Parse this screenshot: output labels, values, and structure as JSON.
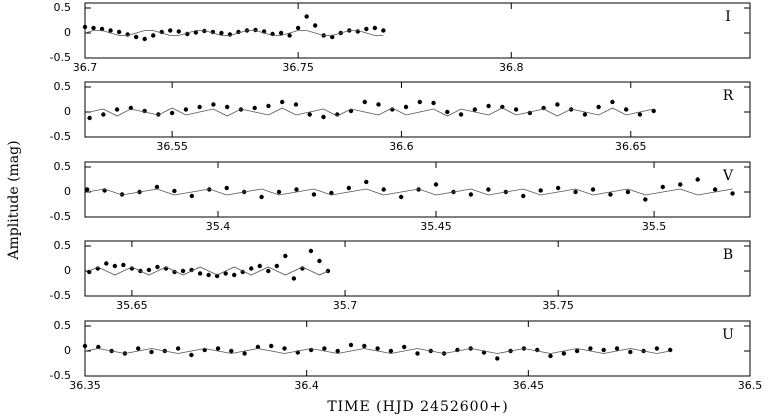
{
  "ylabel": "Amplitude (mag)",
  "xlabel": "TIME (HJD 2452600+)",
  "chart_data": [
    {
      "type": "scatter",
      "label": "I",
      "xlim": [
        36.7,
        36.856
      ],
      "xticks": [
        36.7,
        36.75,
        36.8
      ],
      "ylim": [
        -0.5,
        0.6
      ],
      "yticks": [
        0.5,
        0,
        -0.5
      ],
      "x": [
        36.7,
        36.702,
        36.704,
        36.706,
        36.708,
        36.71,
        36.712,
        36.714,
        36.716,
        36.718,
        36.72,
        36.722,
        36.724,
        36.726,
        36.728,
        36.73,
        36.732,
        36.734,
        36.736,
        36.738,
        36.74,
        36.742,
        36.744,
        36.746,
        36.748,
        36.75,
        36.752,
        36.754,
        36.756,
        36.758,
        36.76,
        36.762,
        36.764,
        36.766,
        36.768,
        36.77
      ],
      "series": [
        {
          "style": "points",
          "color": "#000000",
          "values": [
            0.12,
            0.1,
            0.08,
            0.05,
            0.02,
            -0.03,
            -0.08,
            -0.12,
            -0.05,
            0.02,
            0.05,
            0.03,
            -0.02,
            0.01,
            0.04,
            0.02,
            0,
            -0.03,
            0.02,
            0.05,
            0.06,
            0.03,
            -0.02,
            0,
            -0.05,
            0.1,
            0.33,
            0.15,
            -0.05,
            -0.08,
            0,
            0.05,
            0.03,
            0.08,
            0.1,
            0.05
          ]
        },
        {
          "style": "line",
          "color": "#555555",
          "values": [
            0,
            0.05,
            0.05,
            0,
            -0.05,
            -0.05,
            0,
            0.05,
            0.05,
            0,
            -0.05,
            -0.05,
            0,
            0.05,
            0.05,
            0,
            -0.05,
            -0.05,
            0,
            0.05,
            0.05,
            0,
            -0.05,
            -0.05,
            0,
            0.05,
            0.05,
            0,
            -0.05,
            -0.05,
            0,
            0.05,
            0.05,
            0,
            -0.05,
            -0.05
          ]
        }
      ]
    },
    {
      "type": "scatter",
      "label": "R",
      "xlim": [
        36.531,
        36.676
      ],
      "xticks": [
        36.55,
        36.6,
        36.65
      ],
      "ylim": [
        -0.5,
        0.6
      ],
      "yticks": [
        0.5,
        0,
        -0.5
      ],
      "x": [
        36.532,
        36.535,
        36.538,
        36.541,
        36.544,
        36.547,
        36.55,
        36.553,
        36.556,
        36.559,
        36.562,
        36.565,
        36.568,
        36.571,
        36.574,
        36.577,
        36.58,
        36.583,
        36.586,
        36.589,
        36.592,
        36.595,
        36.598,
        36.601,
        36.604,
        36.607,
        36.61,
        36.613,
        36.616,
        36.619,
        36.622,
        36.625,
        36.628,
        36.631,
        36.634,
        36.637,
        36.64,
        36.643,
        36.646,
        36.649,
        36.652,
        36.655
      ],
      "series": [
        {
          "style": "points",
          "color": "#000000",
          "values": [
            -0.12,
            -0.05,
            0.05,
            0.08,
            0.02,
            -0.05,
            -0.02,
            0.05,
            0.1,
            0.15,
            0.1,
            0.05,
            0.08,
            0.12,
            0.2,
            0.15,
            -0.05,
            -0.1,
            -0.05,
            0.02,
            0.2,
            0.15,
            0.05,
            0.1,
            0.2,
            0.18,
            0,
            -0.05,
            0.05,
            0.12,
            0.1,
            0.05,
            -0.02,
            0.08,
            0.15,
            0.05,
            -0.05,
            0.1,
            0.2,
            0.05,
            -0.05,
            0.02
          ]
        },
        {
          "style": "line",
          "color": "#555555",
          "values": [
            0,
            0.06,
            -0.08,
            0.06,
            0,
            -0.06,
            0.08,
            -0.06,
            0,
            0.06,
            -0.08,
            0.06,
            0,
            -0.06,
            0.08,
            -0.06,
            0,
            0.06,
            -0.08,
            0.06,
            0,
            -0.06,
            0.08,
            -0.06,
            0,
            0.06,
            -0.08,
            0.06,
            0,
            -0.06,
            0.08,
            -0.06,
            0,
            0.06,
            -0.08,
            0.06,
            0,
            -0.06,
            0.08,
            -0.06,
            0,
            0.06
          ]
        }
      ]
    },
    {
      "type": "scatter",
      "label": "V",
      "xlim": [
        35.3695,
        35.522
      ],
      "xticks": [
        35.4,
        35.45,
        35.5
      ],
      "ylim": [
        -0.5,
        0.6
      ],
      "yticks": [
        0.5,
        0,
        -0.5
      ],
      "x": [
        35.37,
        35.374,
        35.378,
        35.382,
        35.386,
        35.39,
        35.394,
        35.398,
        35.402,
        35.406,
        35.41,
        35.414,
        35.418,
        35.422,
        35.426,
        35.43,
        35.434,
        35.438,
        35.442,
        35.446,
        35.45,
        35.454,
        35.458,
        35.462,
        35.466,
        35.47,
        35.474,
        35.478,
        35.482,
        35.486,
        35.49,
        35.494,
        35.498,
        35.502,
        35.506,
        35.51,
        35.514,
        35.518
      ],
      "series": [
        {
          "style": "points",
          "color": "#000000",
          "values": [
            0.05,
            0.03,
            -0.05,
            0,
            0.1,
            0.02,
            -0.08,
            0.05,
            0.08,
            0,
            -0.1,
            0,
            0.05,
            -0.05,
            -0.02,
            0.08,
            0.2,
            0.05,
            -0.1,
            0.05,
            0.15,
            0,
            -0.05,
            0.05,
            0,
            -0.08,
            0.03,
            0.08,
            0,
            0.05,
            -0.05,
            0,
            -0.15,
            0.1,
            0.15,
            0.25,
            0.05,
            -0.03
          ]
        },
        {
          "style": "line",
          "color": "#555555",
          "values": [
            0,
            0.06,
            -0.06,
            0,
            0.06,
            -0.06,
            0,
            0.06,
            -0.06,
            0,
            0.06,
            -0.06,
            0,
            0.06,
            -0.06,
            0,
            0.06,
            -0.06,
            0,
            0.06,
            -0.06,
            0,
            0.06,
            -0.06,
            0,
            0.06,
            -0.06,
            0,
            0.06,
            -0.06,
            0,
            0.06,
            -0.06,
            0,
            0.06,
            -0.06,
            0,
            0.06
          ]
        }
      ]
    },
    {
      "type": "scatter",
      "label": "B",
      "xlim": [
        35.639,
        35.795
      ],
      "xticks": [
        35.65,
        35.7,
        35.75
      ],
      "ylim": [
        -0.5,
        0.6
      ],
      "yticks": [
        0.5,
        0,
        -0.5
      ],
      "x": [
        35.64,
        35.642,
        35.644,
        35.646,
        35.648,
        35.65,
        35.652,
        35.654,
        35.656,
        35.658,
        35.66,
        35.662,
        35.664,
        35.666,
        35.668,
        35.67,
        35.672,
        35.674,
        35.676,
        35.678,
        35.68,
        35.682,
        35.684,
        35.686,
        35.688,
        35.69,
        35.692,
        35.694,
        35.696
      ],
      "series": [
        {
          "style": "points",
          "color": "#000000",
          "values": [
            -0.02,
            0.05,
            0.15,
            0.1,
            0.12,
            0.05,
            0,
            0.02,
            0.08,
            0.05,
            -0.02,
            0,
            0.02,
            -0.05,
            -0.08,
            -0.1,
            -0.05,
            -0.08,
            -0.02,
            0.05,
            0.1,
            0,
            0.1,
            0.3,
            -0.15,
            0.05,
            0.4,
            0.2,
            0
          ]
        },
        {
          "style": "line",
          "color": "#555555",
          "values": [
            0,
            0.08,
            0,
            -0.08,
            0,
            0.08,
            0,
            -0.08,
            0,
            0.08,
            0,
            -0.08,
            0,
            0.08,
            0,
            -0.08,
            0,
            0.08,
            0,
            -0.08,
            0,
            0.08,
            0,
            -0.08,
            0,
            0.08,
            0,
            -0.08,
            0
          ]
        }
      ]
    },
    {
      "type": "scatter",
      "label": "U",
      "xlim": [
        36.35,
        36.5
      ],
      "xticks": [
        36.35,
        36.4,
        36.45,
        36.5
      ],
      "ylim": [
        -0.5,
        0.6
      ],
      "yticks": [
        0.5,
        0,
        -0.5
      ],
      "x": [
        36.35,
        36.353,
        36.356,
        36.359,
        36.362,
        36.365,
        36.368,
        36.371,
        36.374,
        36.377,
        36.38,
        36.383,
        36.386,
        36.389,
        36.392,
        36.395,
        36.398,
        36.401,
        36.404,
        36.407,
        36.41,
        36.413,
        36.416,
        36.419,
        36.422,
        36.425,
        36.428,
        36.431,
        36.434,
        36.437,
        36.44,
        36.443,
        36.446,
        36.449,
        36.452,
        36.455,
        36.458,
        36.461,
        36.464,
        36.467,
        36.47,
        36.473,
        36.476,
        36.479,
        36.482
      ],
      "series": [
        {
          "style": "points",
          "color": "#000000",
          "values": [
            0.1,
            0.08,
            0,
            -0.05,
            0.05,
            -0.02,
            0,
            0.05,
            -0.08,
            0.02,
            0.05,
            0,
            -0.05,
            0.08,
            0.1,
            0.05,
            -0.03,
            0.02,
            0.05,
            0,
            0.12,
            0.1,
            0.05,
            0,
            0.08,
            -0.05,
            0,
            -0.05,
            0.02,
            0.05,
            -0.03,
            -0.15,
            0,
            0.05,
            0.02,
            -0.1,
            -0.05,
            0,
            0.05,
            0.02,
            0.05,
            -0.02,
            0,
            0.05,
            0.02
          ]
        },
        {
          "style": "line",
          "color": "#555555",
          "values": [
            0,
            0.05,
            0,
            -0.05,
            0,
            0.05,
            0,
            -0.05,
            0,
            0.05,
            0,
            -0.05,
            0,
            0.05,
            0,
            -0.05,
            0,
            0.05,
            0,
            -0.05,
            0,
            0.05,
            0,
            -0.05,
            0,
            0.05,
            0,
            -0.05,
            0,
            0.05,
            0,
            -0.05,
            0,
            0.05,
            0,
            -0.05,
            0,
            0.05,
            0,
            -0.05,
            0,
            0.05,
            0,
            -0.05,
            0
          ]
        }
      ]
    }
  ]
}
